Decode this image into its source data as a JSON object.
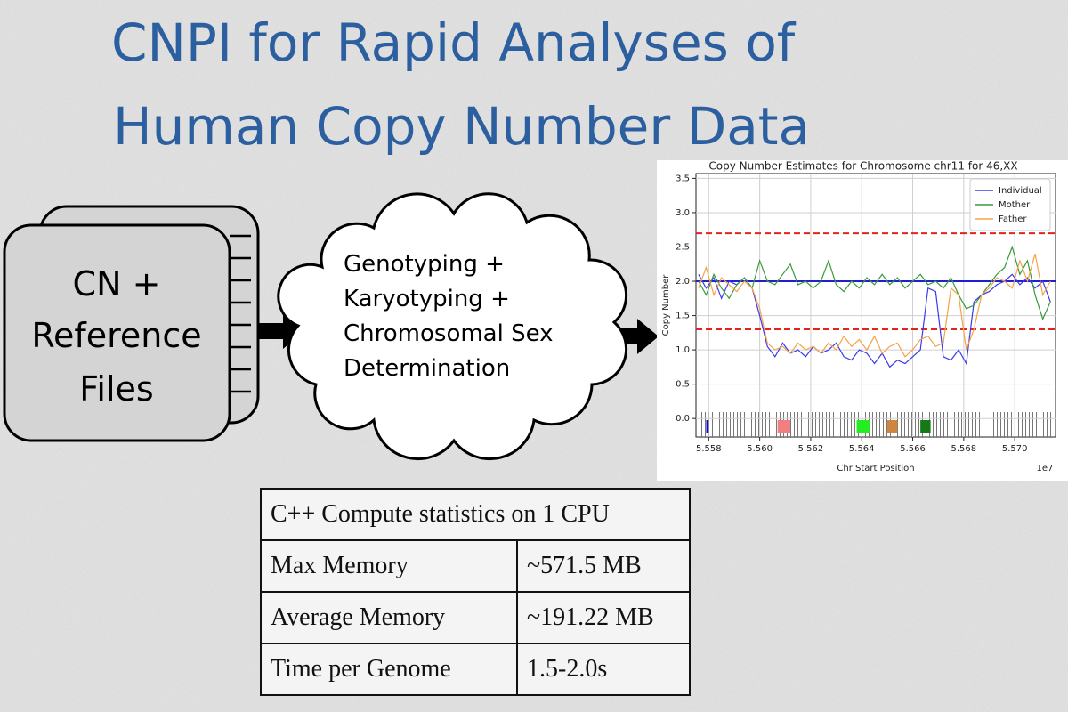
{
  "title": {
    "lines": [
      "CNPI for Rapid Analyses of",
      "Human Copy Number Data"
    ]
  },
  "input_files": {
    "lines": [
      "CN +",
      "Reference",
      "Files"
    ]
  },
  "process": {
    "lines": [
      "Genotyping +",
      "Karyotyping +",
      "Chromosomal Sex",
      "Determination"
    ]
  },
  "chart_data": {
    "type": "line",
    "title": "Copy Number Estimates for Chromosome chr11 for 46,XX",
    "x_label": "Chr Start Position",
    "y_label": "Copy Number",
    "x_offset_label": "1e7",
    "x": [
      5.5576,
      5.5579,
      5.5582,
      5.5585,
      5.5588,
      5.5591,
      5.5594,
      5.5597,
      5.56,
      5.5603,
      5.5606,
      5.5609,
      5.5612,
      5.5615,
      5.5618,
      5.5621,
      5.5624,
      5.5627,
      5.563,
      5.5633,
      5.5636,
      5.5639,
      5.5642,
      5.5645,
      5.5648,
      5.5651,
      5.5654,
      5.5657,
      5.566,
      5.5663,
      5.5666,
      5.5669,
      5.5672,
      5.5675,
      5.5678,
      5.5681,
      5.5684,
      5.5687,
      5.569,
      5.5693,
      5.5696,
      5.5699,
      5.5702,
      5.5705,
      5.5708,
      5.5711,
      5.5714
    ],
    "series": [
      {
        "name": "Individual",
        "color": "#3a3af0",
        "values": [
          2.1,
          1.9,
          2.05,
          1.75,
          2.0,
          1.95,
          2.05,
          1.9,
          1.5,
          1.05,
          0.9,
          1.1,
          0.95,
          1.0,
          0.9,
          1.05,
          0.95,
          1.0,
          1.1,
          0.9,
          0.85,
          1.0,
          0.95,
          0.8,
          0.95,
          0.75,
          0.85,
          0.8,
          0.9,
          1.0,
          1.9,
          1.85,
          0.9,
          0.85,
          1.0,
          0.8,
          1.7,
          1.8,
          1.85,
          1.95,
          2.0,
          2.1,
          1.95,
          2.05,
          1.9,
          2.0,
          1.7
        ]
      },
      {
        "name": "Mother",
        "color": "#3a9a3a",
        "values": [
          2.0,
          1.8,
          2.1,
          1.9,
          1.75,
          1.95,
          2.05,
          1.9,
          2.3,
          2.0,
          1.95,
          2.1,
          2.25,
          1.95,
          2.0,
          1.9,
          2.0,
          2.3,
          1.95,
          1.85,
          2.0,
          1.9,
          2.05,
          1.95,
          2.1,
          1.95,
          2.05,
          1.9,
          2.0,
          2.1,
          1.95,
          2.0,
          1.9,
          2.05,
          1.8,
          1.6,
          1.65,
          1.8,
          1.95,
          2.1,
          2.2,
          2.5,
          2.1,
          2.3,
          1.8,
          1.45,
          1.7
        ]
      },
      {
        "name": "Father",
        "color": "#f5a347",
        "values": [
          1.9,
          2.2,
          1.8,
          2.05,
          1.95,
          1.85,
          2.0,
          1.9,
          1.6,
          1.1,
          1.0,
          1.05,
          0.95,
          1.1,
          1.0,
          1.05,
          0.95,
          1.1,
          1.0,
          1.2,
          1.05,
          1.15,
          1.0,
          1.2,
          0.95,
          1.05,
          1.1,
          0.9,
          1.0,
          1.15,
          1.2,
          1.05,
          1.1,
          1.9,
          1.8,
          1.0,
          1.3,
          1.8,
          1.9,
          2.05,
          2.0,
          1.9,
          2.3,
          2.0,
          2.4,
          1.8,
          2.0
        ]
      }
    ],
    "reference_lines": [
      {
        "value": 2.7,
        "color": "#e3231c",
        "style": "dashed"
      },
      {
        "value": 2.0,
        "color": "#1f1fd0",
        "style": "solid"
      },
      {
        "value": 1.3,
        "color": "#e3231c",
        "style": "dashed"
      }
    ],
    "markers": [
      {
        "x": [
          5.5579,
          5.558
        ],
        "color": "#1010c8"
      },
      {
        "x": [
          5.5607,
          5.5612
        ],
        "color": "#f08080"
      },
      {
        "x": [
          5.5638,
          5.5643
        ],
        "color": "#22ee22"
      },
      {
        "x": [
          5.565,
          5.5654
        ],
        "color": "#cd853f"
      },
      {
        "x": [
          5.5663,
          5.5667
        ],
        "color": "#157a15"
      }
    ],
    "xlim": [
      5.5575,
      5.5716
    ],
    "ylim": [
      -0.27,
      3.57
    ],
    "xticks": [
      5.558,
      {
        "value": 5.56,
        "label": "5.560"
      },
      5.562,
      5.564,
      5.566,
      5.568,
      {
        "value": 5.57,
        "label": "5.570"
      }
    ],
    "yticks": [
      {
        "value": 0,
        "label": "0.0"
      },
      0.5,
      {
        "value": 1,
        "label": "1.0"
      },
      1.5,
      {
        "value": 2,
        "label": "2.0"
      },
      2.5,
      {
        "value": 3,
        "label": "3.0"
      },
      3.5
    ],
    "grid": true,
    "legend": "upper right"
  },
  "table": {
    "title": "C++ Compute statistics on 1 CPU",
    "rows": [
      [
        "Max Memory",
        "~571.5 MB"
      ],
      [
        "Average Memory",
        "~191.22 MB"
      ],
      [
        "Time per Genome",
        "1.5-2.0s"
      ]
    ]
  }
}
